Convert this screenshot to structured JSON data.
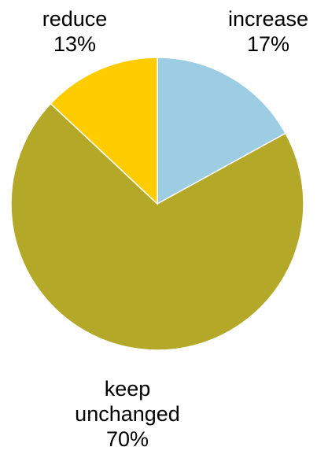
{
  "chart_data": {
    "type": "pie",
    "start_angle_deg": 0,
    "direction": "clockwise",
    "slices": [
      {
        "label": "increase",
        "value": 17,
        "value_label": "17%",
        "color": "#9ccde3"
      },
      {
        "label": "keep unchanged",
        "value": 70,
        "value_label": "70%",
        "color": "#b3a828"
      },
      {
        "label": "reduce",
        "value": 13,
        "value_label": "13%",
        "color": "#ffcc00"
      }
    ]
  }
}
